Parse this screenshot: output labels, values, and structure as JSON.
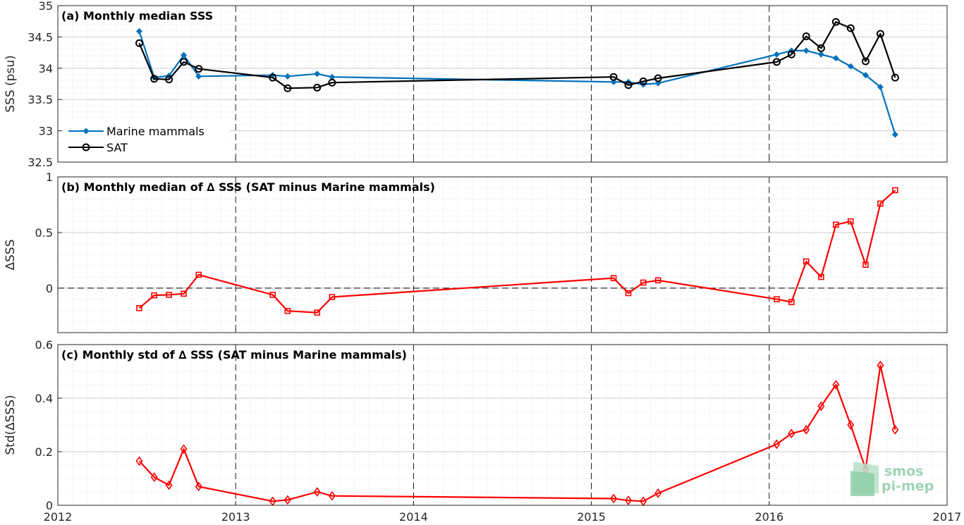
{
  "colors": {
    "marine": "#0072bd",
    "sat": "#000000",
    "delta": "#ff0000",
    "logo": "#9fd3b6"
  },
  "logo": {
    "line1": "smos",
    "line2": "pi-mep"
  },
  "chart_data": [
    {
      "type": "line",
      "title": "(a) Monthly median SSS",
      "ylabel": "SSS (psu)",
      "ylim": [
        32.5,
        35
      ],
      "yticks": [
        32.5,
        33,
        33.5,
        34,
        34.5,
        35
      ],
      "ytick_labels": [
        "32.5",
        "33",
        "33.5",
        "34",
        "34.5",
        "35"
      ],
      "xlim": [
        2012,
        2017
      ],
      "grid": true,
      "legend": "bottom-left",
      "series": [
        {
          "name": "Marine mammals",
          "color": "#0072bd",
          "marker": "diamond-filled",
          "x": [
            2012.458,
            2012.542,
            2012.625,
            2012.708,
            2012.792,
            2013.208,
            2013.292,
            2013.458,
            2013.542,
            2015.125,
            2015.208,
            2015.292,
            2015.375,
            2016.042,
            2016.125,
            2016.208,
            2016.292,
            2016.375,
            2016.458,
            2016.542,
            2016.625,
            2016.708
          ],
          "values": [
            34.59,
            33.85,
            33.88,
            34.21,
            33.87,
            33.89,
            33.87,
            33.91,
            33.86,
            33.78,
            33.78,
            33.74,
            33.76,
            34.22,
            34.28,
            34.28,
            34.22,
            34.16,
            34.03,
            33.89,
            33.7,
            32.94
          ]
        },
        {
          "name": "SAT",
          "color": "#000000",
          "marker": "circle-open",
          "x": [
            2012.458,
            2012.542,
            2012.625,
            2012.708,
            2012.792,
            2013.208,
            2013.292,
            2013.458,
            2013.542,
            2015.125,
            2015.208,
            2015.292,
            2015.375,
            2016.042,
            2016.125,
            2016.208,
            2016.292,
            2016.375,
            2016.458,
            2016.542,
            2016.625,
            2016.708
          ],
          "values": [
            34.4,
            33.83,
            33.82,
            34.1,
            33.99,
            33.85,
            33.68,
            33.69,
            33.77,
            33.86,
            33.73,
            33.79,
            33.84,
            34.1,
            34.22,
            34.51,
            34.32,
            34.74,
            34.64,
            34.11,
            34.55,
            33.85
          ]
        }
      ]
    },
    {
      "type": "line",
      "title": "(b) Monthly median of ∆ SSS (SAT minus Marine mammals)",
      "ylabel": "∆SSS",
      "ylim": [
        -0.4,
        1
      ],
      "yticks": [
        0,
        0.5,
        1
      ],
      "ytick_labels": [
        "0",
        "0.5",
        "1"
      ],
      "xlim": [
        2012,
        2017
      ],
      "grid": true,
      "reference_line": 0,
      "series": [
        {
          "name": "",
          "color": "#ff0000",
          "marker": "square-open",
          "x": [
            2012.458,
            2012.542,
            2012.625,
            2012.708,
            2012.792,
            2013.208,
            2013.292,
            2013.458,
            2013.542,
            2015.125,
            2015.208,
            2015.292,
            2015.375,
            2016.042,
            2016.125,
            2016.208,
            2016.292,
            2016.375,
            2016.458,
            2016.542,
            2016.625,
            2016.708
          ],
          "values": [
            -0.18,
            -0.065,
            -0.06,
            -0.05,
            0.12,
            -0.06,
            -0.205,
            -0.22,
            -0.08,
            0.09,
            -0.045,
            0.05,
            0.07,
            -0.1,
            -0.125,
            0.24,
            0.1,
            0.57,
            0.6,
            0.21,
            0.76,
            0.88
          ]
        }
      ]
    },
    {
      "type": "line",
      "title": "(c) Monthly std of ∆ SSS (SAT minus Marine mammals)",
      "ylabel": "Std(∆SSS)",
      "ylim": [
        0,
        0.6
      ],
      "yticks": [
        0,
        0.2,
        0.4,
        0.6
      ],
      "ytick_labels": [
        "0",
        "0.2",
        "0.4",
        "0.6"
      ],
      "xlim": [
        2012,
        2017
      ],
      "xticks": [
        2012,
        2013,
        2014,
        2015,
        2016,
        2017
      ],
      "xtick_labels": [
        "2012",
        "2013",
        "2014",
        "2015",
        "2016",
        "2017"
      ],
      "grid": true,
      "series": [
        {
          "name": "",
          "color": "#ff0000",
          "marker": "diamond-open",
          "x": [
            2012.458,
            2012.542,
            2012.625,
            2012.708,
            2012.792,
            2013.208,
            2013.292,
            2013.458,
            2013.542,
            2015.125,
            2015.208,
            2015.292,
            2015.375,
            2016.042,
            2016.125,
            2016.208,
            2016.292,
            2016.375,
            2016.458,
            2016.542,
            2016.625,
            2016.708
          ],
          "values": [
            0.165,
            0.105,
            0.075,
            0.21,
            0.07,
            0.015,
            0.02,
            0.05,
            0.035,
            0.025,
            0.018,
            0.015,
            0.045,
            0.228,
            0.268,
            0.282,
            0.37,
            0.45,
            0.3,
            0.135,
            0.522,
            0.282
          ]
        }
      ]
    }
  ]
}
